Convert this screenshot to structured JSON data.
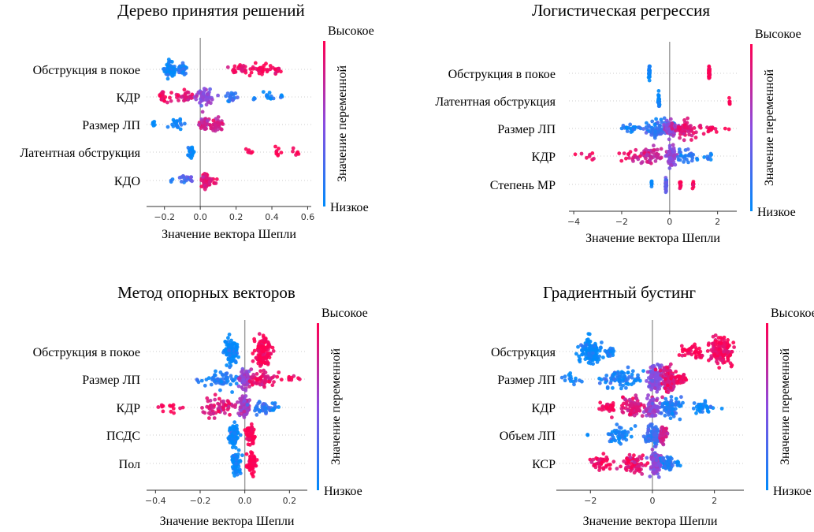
{
  "colors": {
    "high": "#ff0d57",
    "low": "#1e88e5",
    "zero_line": "#999999",
    "row_line": "#cccccc",
    "axis": "#333333"
  },
  "colorbar": {
    "high_label": "Высокое",
    "low_label": "Низкое",
    "title": "Значение переменной"
  },
  "chart_data": [
    {
      "type": "scatter",
      "subtype": "shap-beeswarm",
      "title": "Дерево принятия решений",
      "xlabel": "Значение вектора Шепли",
      "xlim": [
        -0.3,
        0.62
      ],
      "ticks": [
        -0.2,
        0.0,
        0.2,
        0.4,
        0.6
      ],
      "tick_labels": [
        "−0.2",
        "0.0",
        "0.2",
        "0.4",
        "0.6"
      ],
      "features": [
        {
          "name": "Обструкция в покое",
          "clusters": [
            {
              "x": -0.17,
              "spread": 0.03,
              "n": 55,
              "v": 0.0
            },
            {
              "x": -0.1,
              "spread": 0.02,
              "n": 30,
              "v": 0.1
            },
            {
              "x": 0.22,
              "spread": 0.05,
              "n": 25,
              "v": 0.95
            },
            {
              "x": 0.34,
              "spread": 0.05,
              "n": 30,
              "v": 1.0
            },
            {
              "x": 0.43,
              "spread": 0.02,
              "n": 15,
              "v": 0.95
            }
          ]
        },
        {
          "name": "КДР",
          "clusters": [
            {
              "x": -0.2,
              "spread": 0.03,
              "n": 20,
              "v": 0.95
            },
            {
              "x": -0.08,
              "spread": 0.04,
              "n": 30,
              "v": 0.85
            },
            {
              "x": 0.02,
              "spread": 0.04,
              "n": 60,
              "v": 0.5
            },
            {
              "x": 0.17,
              "spread": 0.03,
              "n": 20,
              "v": 0.2
            },
            {
              "x": 0.3,
              "spread": 0.01,
              "n": 3,
              "v": 0.0
            },
            {
              "x": 0.38,
              "spread": 0.02,
              "n": 10,
              "v": 0.05
            },
            {
              "x": 0.45,
              "spread": 0.01,
              "n": 4,
              "v": 0.0
            }
          ]
        },
        {
          "name": "Размер ЛП",
          "clusters": [
            {
              "x": -0.26,
              "spread": 0.01,
              "n": 6,
              "v": 0.0
            },
            {
              "x": -0.13,
              "spread": 0.03,
              "n": 22,
              "v": 0.05
            },
            {
              "x": 0.02,
              "spread": 0.02,
              "n": 40,
              "v": 0.75
            },
            {
              "x": 0.09,
              "spread": 0.03,
              "n": 45,
              "v": 0.8
            }
          ]
        },
        {
          "name": "Латентная обструкция",
          "clusters": [
            {
              "x": -0.05,
              "spread": 0.02,
              "n": 30,
              "v": 0.0
            },
            {
              "x": 0.27,
              "spread": 0.02,
              "n": 6,
              "v": 1.0
            },
            {
              "x": 0.42,
              "spread": 0.04,
              "n": 8,
              "v": 1.0
            },
            {
              "x": 0.53,
              "spread": 0.02,
              "n": 6,
              "v": 1.0
            }
          ]
        },
        {
          "name": "КДО",
          "clusters": [
            {
              "x": -0.16,
              "spread": 0.01,
              "n": 3,
              "v": 0.15
            },
            {
              "x": -0.07,
              "spread": 0.03,
              "n": 20,
              "v": 0.3
            },
            {
              "x": 0.03,
              "spread": 0.02,
              "n": 55,
              "v": 0.85
            },
            {
              "x": 0.07,
              "spread": 0.02,
              "n": 10,
              "v": 0.9
            }
          ]
        }
      ]
    },
    {
      "type": "scatter",
      "subtype": "shap-beeswarm",
      "title": "Логистическая регрессия",
      "xlabel": "Значение вектора Шепли",
      "xlim": [
        -4.2,
        2.8
      ],
      "ticks": [
        -4,
        -2,
        0,
        2
      ],
      "tick_labels": [
        "−4",
        "−2",
        "0",
        "2"
      ],
      "features": [
        {
          "name": "Обструкция в покое",
          "clusters": [
            {
              "x": -0.85,
              "spread": 0.02,
              "n": 40,
              "v": 0.0
            },
            {
              "x": 1.65,
              "spread": 0.02,
              "n": 40,
              "v": 1.0
            }
          ]
        },
        {
          "name": "Латентная обструкция",
          "clusters": [
            {
              "x": -0.45,
              "spread": 0.02,
              "n": 40,
              "v": 0.0
            },
            {
              "x": 2.5,
              "spread": 0.02,
              "n": 6,
              "v": 1.0
            }
          ]
        },
        {
          "name": "Размер ЛП",
          "clusters": [
            {
              "x": -1.6,
              "spread": 0.4,
              "n": 20,
              "v": 0.05
            },
            {
              "x": -0.5,
              "spread": 0.45,
              "n": 70,
              "v": 0.2
            },
            {
              "x": 0.05,
              "spread": 0.2,
              "n": 60,
              "v": 0.55
            },
            {
              "x": 0.7,
              "spread": 0.4,
              "n": 60,
              "v": 0.85
            },
            {
              "x": 1.7,
              "spread": 0.5,
              "n": 20,
              "v": 0.95
            }
          ]
        },
        {
          "name": "КДР",
          "clusters": [
            {
              "x": -3.5,
              "spread": 0.3,
              "n": 8,
              "v": 0.95
            },
            {
              "x": -1.7,
              "spread": 0.3,
              "n": 15,
              "v": 0.9
            },
            {
              "x": -0.8,
              "spread": 0.4,
              "n": 60,
              "v": 0.75
            },
            {
              "x": 0.05,
              "spread": 0.15,
              "n": 70,
              "v": 0.5
            },
            {
              "x": 0.8,
              "spread": 0.4,
              "n": 30,
              "v": 0.15
            },
            {
              "x": 1.6,
              "spread": 0.2,
              "n": 8,
              "v": 0.05
            }
          ]
        },
        {
          "name": "Степень МР",
          "clusters": [
            {
              "x": -0.75,
              "spread": 0.01,
              "n": 8,
              "v": 0.0
            },
            {
              "x": -0.15,
              "spread": 0.02,
              "n": 60,
              "v": 0.35
            },
            {
              "x": 0.45,
              "spread": 0.02,
              "n": 10,
              "v": 1.0
            },
            {
              "x": 0.98,
              "spread": 0.02,
              "n": 8,
              "v": 1.0
            }
          ]
        }
      ]
    },
    {
      "type": "scatter",
      "subtype": "shap-beeswarm",
      "title": "Метод опорных векторов",
      "xlabel": "Значение вектора Шепли",
      "xlim": [
        -0.44,
        0.28
      ],
      "ticks": [
        -0.4,
        -0.2,
        0.0,
        0.2
      ],
      "tick_labels": [
        "−0.4",
        "−0.2",
        "0.0",
        "0.2"
      ],
      "features": [
        {
          "name": "Обструкция в покое",
          "clusters": [
            {
              "x": -0.06,
              "spread": 0.025,
              "n": 120,
              "v": 0.0
            },
            {
              "x": 0.08,
              "spread": 0.03,
              "n": 120,
              "v": 1.0
            }
          ]
        },
        {
          "name": "Размер ЛП",
          "clusters": [
            {
              "x": -0.22,
              "spread": 0.01,
              "n": 2,
              "v": 0.1
            },
            {
              "x": -0.1,
              "spread": 0.06,
              "n": 60,
              "v": 0.1
            },
            {
              "x": 0.0,
              "spread": 0.02,
              "n": 80,
              "v": 0.55
            },
            {
              "x": 0.08,
              "spread": 0.05,
              "n": 60,
              "v": 0.9
            },
            {
              "x": 0.22,
              "spread": 0.03,
              "n": 10,
              "v": 1.0
            }
          ]
        },
        {
          "name": "КДР",
          "clusters": [
            {
              "x": -0.33,
              "spread": 0.05,
              "n": 15,
              "v": 1.0
            },
            {
              "x": -0.12,
              "spread": 0.06,
              "n": 70,
              "v": 0.85
            },
            {
              "x": 0.0,
              "spread": 0.02,
              "n": 80,
              "v": 0.6
            },
            {
              "x": 0.08,
              "spread": 0.04,
              "n": 40,
              "v": 0.15
            },
            {
              "x": 0.14,
              "spread": 0.02,
              "n": 6,
              "v": 0.05
            }
          ]
        },
        {
          "name": "ПСДС",
          "clusters": [
            {
              "x": -0.05,
              "spread": 0.02,
              "n": 80,
              "v": 0.0
            },
            {
              "x": 0.025,
              "spread": 0.015,
              "n": 70,
              "v": 1.0
            }
          ]
        },
        {
          "name": "Пол",
          "clusters": [
            {
              "x": -0.04,
              "spread": 0.015,
              "n": 80,
              "v": 0.0
            },
            {
              "x": 0.03,
              "spread": 0.015,
              "n": 80,
              "v": 1.0
            }
          ]
        }
      ]
    },
    {
      "type": "scatter",
      "subtype": "shap-beeswarm",
      "title": "Градиентный бустинг",
      "xlabel": "Значение вектора Шепли",
      "xlim": [
        -3.1,
        2.95
      ],
      "ticks": [
        -2,
        0,
        2
      ],
      "tick_labels": [
        "−2",
        "0",
        "2"
      ],
      "features": [
        {
          "name": "Обструкция",
          "clusters": [
            {
              "x": -2.0,
              "spread": 0.25,
              "n": 140,
              "v": 0.0
            },
            {
              "x": -1.4,
              "spread": 0.15,
              "n": 25,
              "v": 0.05
            },
            {
              "x": 1.3,
              "spread": 0.3,
              "n": 40,
              "v": 1.0
            },
            {
              "x": 2.2,
              "spread": 0.3,
              "n": 140,
              "v": 0.95
            }
          ]
        },
        {
          "name": "Размер ЛП",
          "clusters": [
            {
              "x": -2.5,
              "spread": 0.4,
              "n": 15,
              "v": 0.0
            },
            {
              "x": -1.0,
              "spread": 0.5,
              "n": 80,
              "v": 0.1
            },
            {
              "x": 0.1,
              "spread": 0.2,
              "n": 120,
              "v": 0.45
            },
            {
              "x": 0.5,
              "spread": 0.2,
              "n": 120,
              "v": 0.85
            },
            {
              "x": 0.9,
              "spread": 0.15,
              "n": 30,
              "v": 0.95
            }
          ]
        },
        {
          "name": "КДР",
          "clusters": [
            {
              "x": -1.4,
              "spread": 0.2,
              "n": 30,
              "v": 1.0
            },
            {
              "x": -0.6,
              "spread": 0.35,
              "n": 80,
              "v": 0.85
            },
            {
              "x": 0.0,
              "spread": 0.15,
              "n": 90,
              "v": 0.55
            },
            {
              "x": 0.6,
              "spread": 0.3,
              "n": 70,
              "v": 0.1
            },
            {
              "x": 1.6,
              "spread": 0.3,
              "n": 40,
              "v": 0.0
            }
          ]
        },
        {
          "name": "Объем ЛП",
          "clusters": [
            {
              "x": -2.1,
              "spread": 0.02,
              "n": 2,
              "v": 0.0
            },
            {
              "x": -1.1,
              "spread": 0.4,
              "n": 50,
              "v": 0.05
            },
            {
              "x": 0.0,
              "spread": 0.2,
              "n": 80,
              "v": 0.2
            },
            {
              "x": 0.35,
              "spread": 0.1,
              "n": 60,
              "v": 0.8
            }
          ]
        },
        {
          "name": "КСР",
          "clusters": [
            {
              "x": -1.6,
              "spread": 0.35,
              "n": 40,
              "v": 0.95
            },
            {
              "x": -0.6,
              "spread": 0.3,
              "n": 70,
              "v": 0.9
            },
            {
              "x": 0.1,
              "spread": 0.15,
              "n": 110,
              "v": 0.5
            },
            {
              "x": 0.5,
              "spread": 0.15,
              "n": 60,
              "v": 0.1
            },
            {
              "x": 0.8,
              "spread": 0.05,
              "n": 6,
              "v": 0.0
            }
          ]
        }
      ]
    }
  ]
}
